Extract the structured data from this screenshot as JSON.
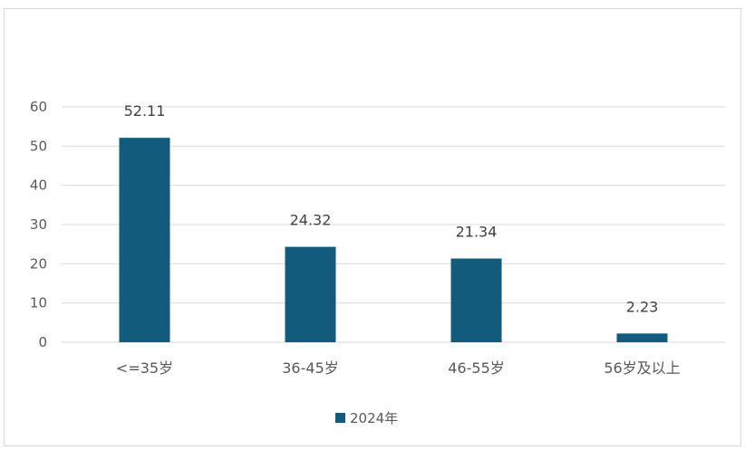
{
  "chart_data": {
    "type": "bar",
    "categories": [
      "<=35岁",
      "36-45岁",
      "46-55岁",
      "56岁及以上"
    ],
    "series": [
      {
        "name": "2024年",
        "values": [
          52.11,
          24.32,
          21.34,
          2.23
        ]
      }
    ],
    "data_labels": [
      "52.11",
      "24.32",
      "21.34",
      "2.23"
    ],
    "y_ticks": [
      0,
      10,
      20,
      30,
      40,
      50,
      60
    ],
    "ylim": [
      0,
      60
    ],
    "grid": true,
    "legend_position": "bottom",
    "bar_color": "#135b7d",
    "grid_color": "#d9d9d9"
  }
}
